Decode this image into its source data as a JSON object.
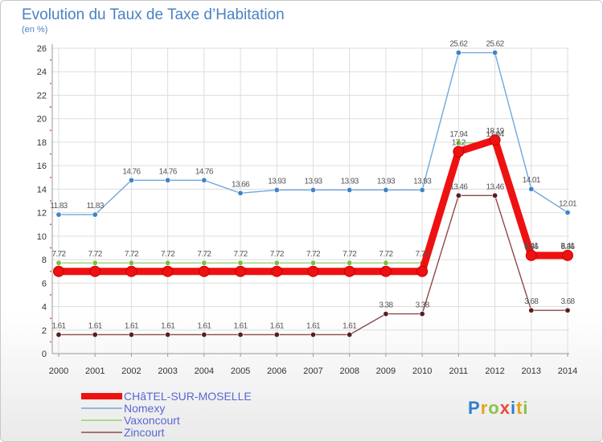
{
  "chart_data": {
    "type": "line",
    "title": "Evolution du Taux de Taxe d’Habitation",
    "ylabel": "(en %)",
    "xlabel": "",
    "ylim": [
      0,
      26
    ],
    "yticks": [
      0,
      2,
      4,
      6,
      8,
      10,
      12,
      14,
      16,
      18,
      20,
      22,
      24,
      26
    ],
    "categories": [
      "2000",
      "2001",
      "2002",
      "2003",
      "2004",
      "2005",
      "2006",
      "2007",
      "2008",
      "2009",
      "2010",
      "2011",
      "2012",
      "2013",
      "2014"
    ],
    "series": [
      {
        "name": "CHâTEL-SUR-MOSELLE",
        "color": "#ee1111",
        "marker": "#ee1111",
        "thick": true,
        "values": [
          7.0,
          7.0,
          7.0,
          7.0,
          7.0,
          7.0,
          7.0,
          7.0,
          7.0,
          7.0,
          7.0,
          17.2,
          18.19,
          8.36,
          8.36
        ],
        "labels": [
          "",
          "",
          "",
          "",
          "",
          "",
          "",
          "",
          "",
          "",
          "",
          "17.2",
          "18.19",
          "8.36",
          "8.36"
        ]
      },
      {
        "name": "Nomexy",
        "color": "#6fa8dc",
        "marker": "#3d85c6",
        "thick": false,
        "values": [
          11.83,
          11.83,
          14.76,
          14.76,
          14.76,
          13.66,
          13.93,
          13.93,
          13.93,
          13.93,
          13.93,
          25.62,
          25.62,
          14.01,
          12.01
        ],
        "labels": [
          "11.83",
          "11.83",
          "14.76",
          "14.76",
          "14.76",
          "13.66",
          "13.93",
          "13.93",
          "13.93",
          "13.93",
          "13.93",
          "25.62",
          "25.62",
          "14.01",
          "12.01"
        ]
      },
      {
        "name": "Vaxoncourt",
        "color": "#93d36b",
        "marker": "#76c043",
        "thick": false,
        "values": [
          7.72,
          7.72,
          7.72,
          7.72,
          7.72,
          7.72,
          7.72,
          7.72,
          7.72,
          7.72,
          7.72,
          17.94,
          17.94,
          8.41,
          8.41
        ],
        "labels": [
          "7.72",
          "7.72",
          "7.72",
          "7.72",
          "7.72",
          "7.72",
          "7.72",
          "7.72",
          "7.72",
          "7.72",
          "7.72",
          "17.94",
          "17.94",
          "8.41",
          "8.41"
        ]
      },
      {
        "name": "Zincourt",
        "color": "#8b4a4a",
        "marker": "#5a1e1e",
        "thick": false,
        "values": [
          1.61,
          1.61,
          1.61,
          1.61,
          1.61,
          1.61,
          1.61,
          1.61,
          1.61,
          3.38,
          3.38,
          13.46,
          13.46,
          3.68,
          3.68
        ],
        "labels": [
          "1.61",
          "1.61",
          "1.61",
          "1.61",
          "1.61",
          "1.61",
          "1.61",
          "1.61",
          "1.61",
          "3.38",
          "3.38",
          "13.46",
          "13.46",
          "3.68",
          "3.68"
        ]
      }
    ]
  },
  "brand": {
    "logo_letters": [
      "P",
      "r",
      "o",
      "x",
      "i",
      "t",
      "i"
    ],
    "logo_colors": [
      "#2f7fd0",
      "#e8a21b",
      "#8bc34a",
      "#e84c3d",
      "#2f7fd0",
      "#e8a21b",
      "#8bc34a"
    ]
  }
}
